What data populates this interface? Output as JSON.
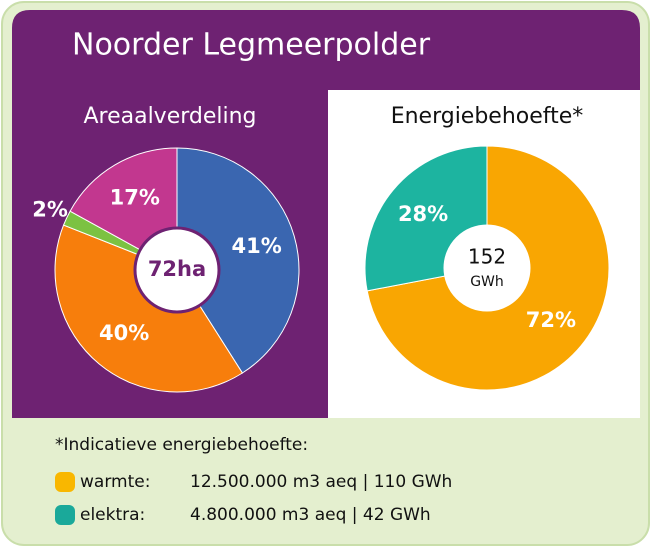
{
  "title": "Noorder Legmeerpolder",
  "chart_data": [
    {
      "type": "pie",
      "title": "Areaalverdeling",
      "values": [
        41,
        40,
        2,
        17
      ],
      "value_labels": [
        "41%",
        "40%",
        "2%",
        "17%"
      ],
      "colors": [
        "#3a66b0",
        "#f77e0c",
        "#7cc242",
        "#c2378f"
      ],
      "center_label": "72ha"
    },
    {
      "type": "pie",
      "title": "Energiebehoefte*",
      "values": [
        72,
        28
      ],
      "value_labels": [
        "72%",
        "28%"
      ],
      "colors": [
        "#f9a602",
        "#1db4a0"
      ],
      "center_label": "152",
      "center_sublabel": "GWh"
    }
  ],
  "footnote": {
    "title": "*Indicatieve energiebehoefte:",
    "items": [
      {
        "name": "warmte:",
        "color": "#f9b700",
        "text": "12.500.000 m3 aeq | 110 GWh"
      },
      {
        "name": "elektra:",
        "color": "#1aa99a",
        "text": "4.800.000 m3 aeq | 42 GWh"
      }
    ]
  }
}
